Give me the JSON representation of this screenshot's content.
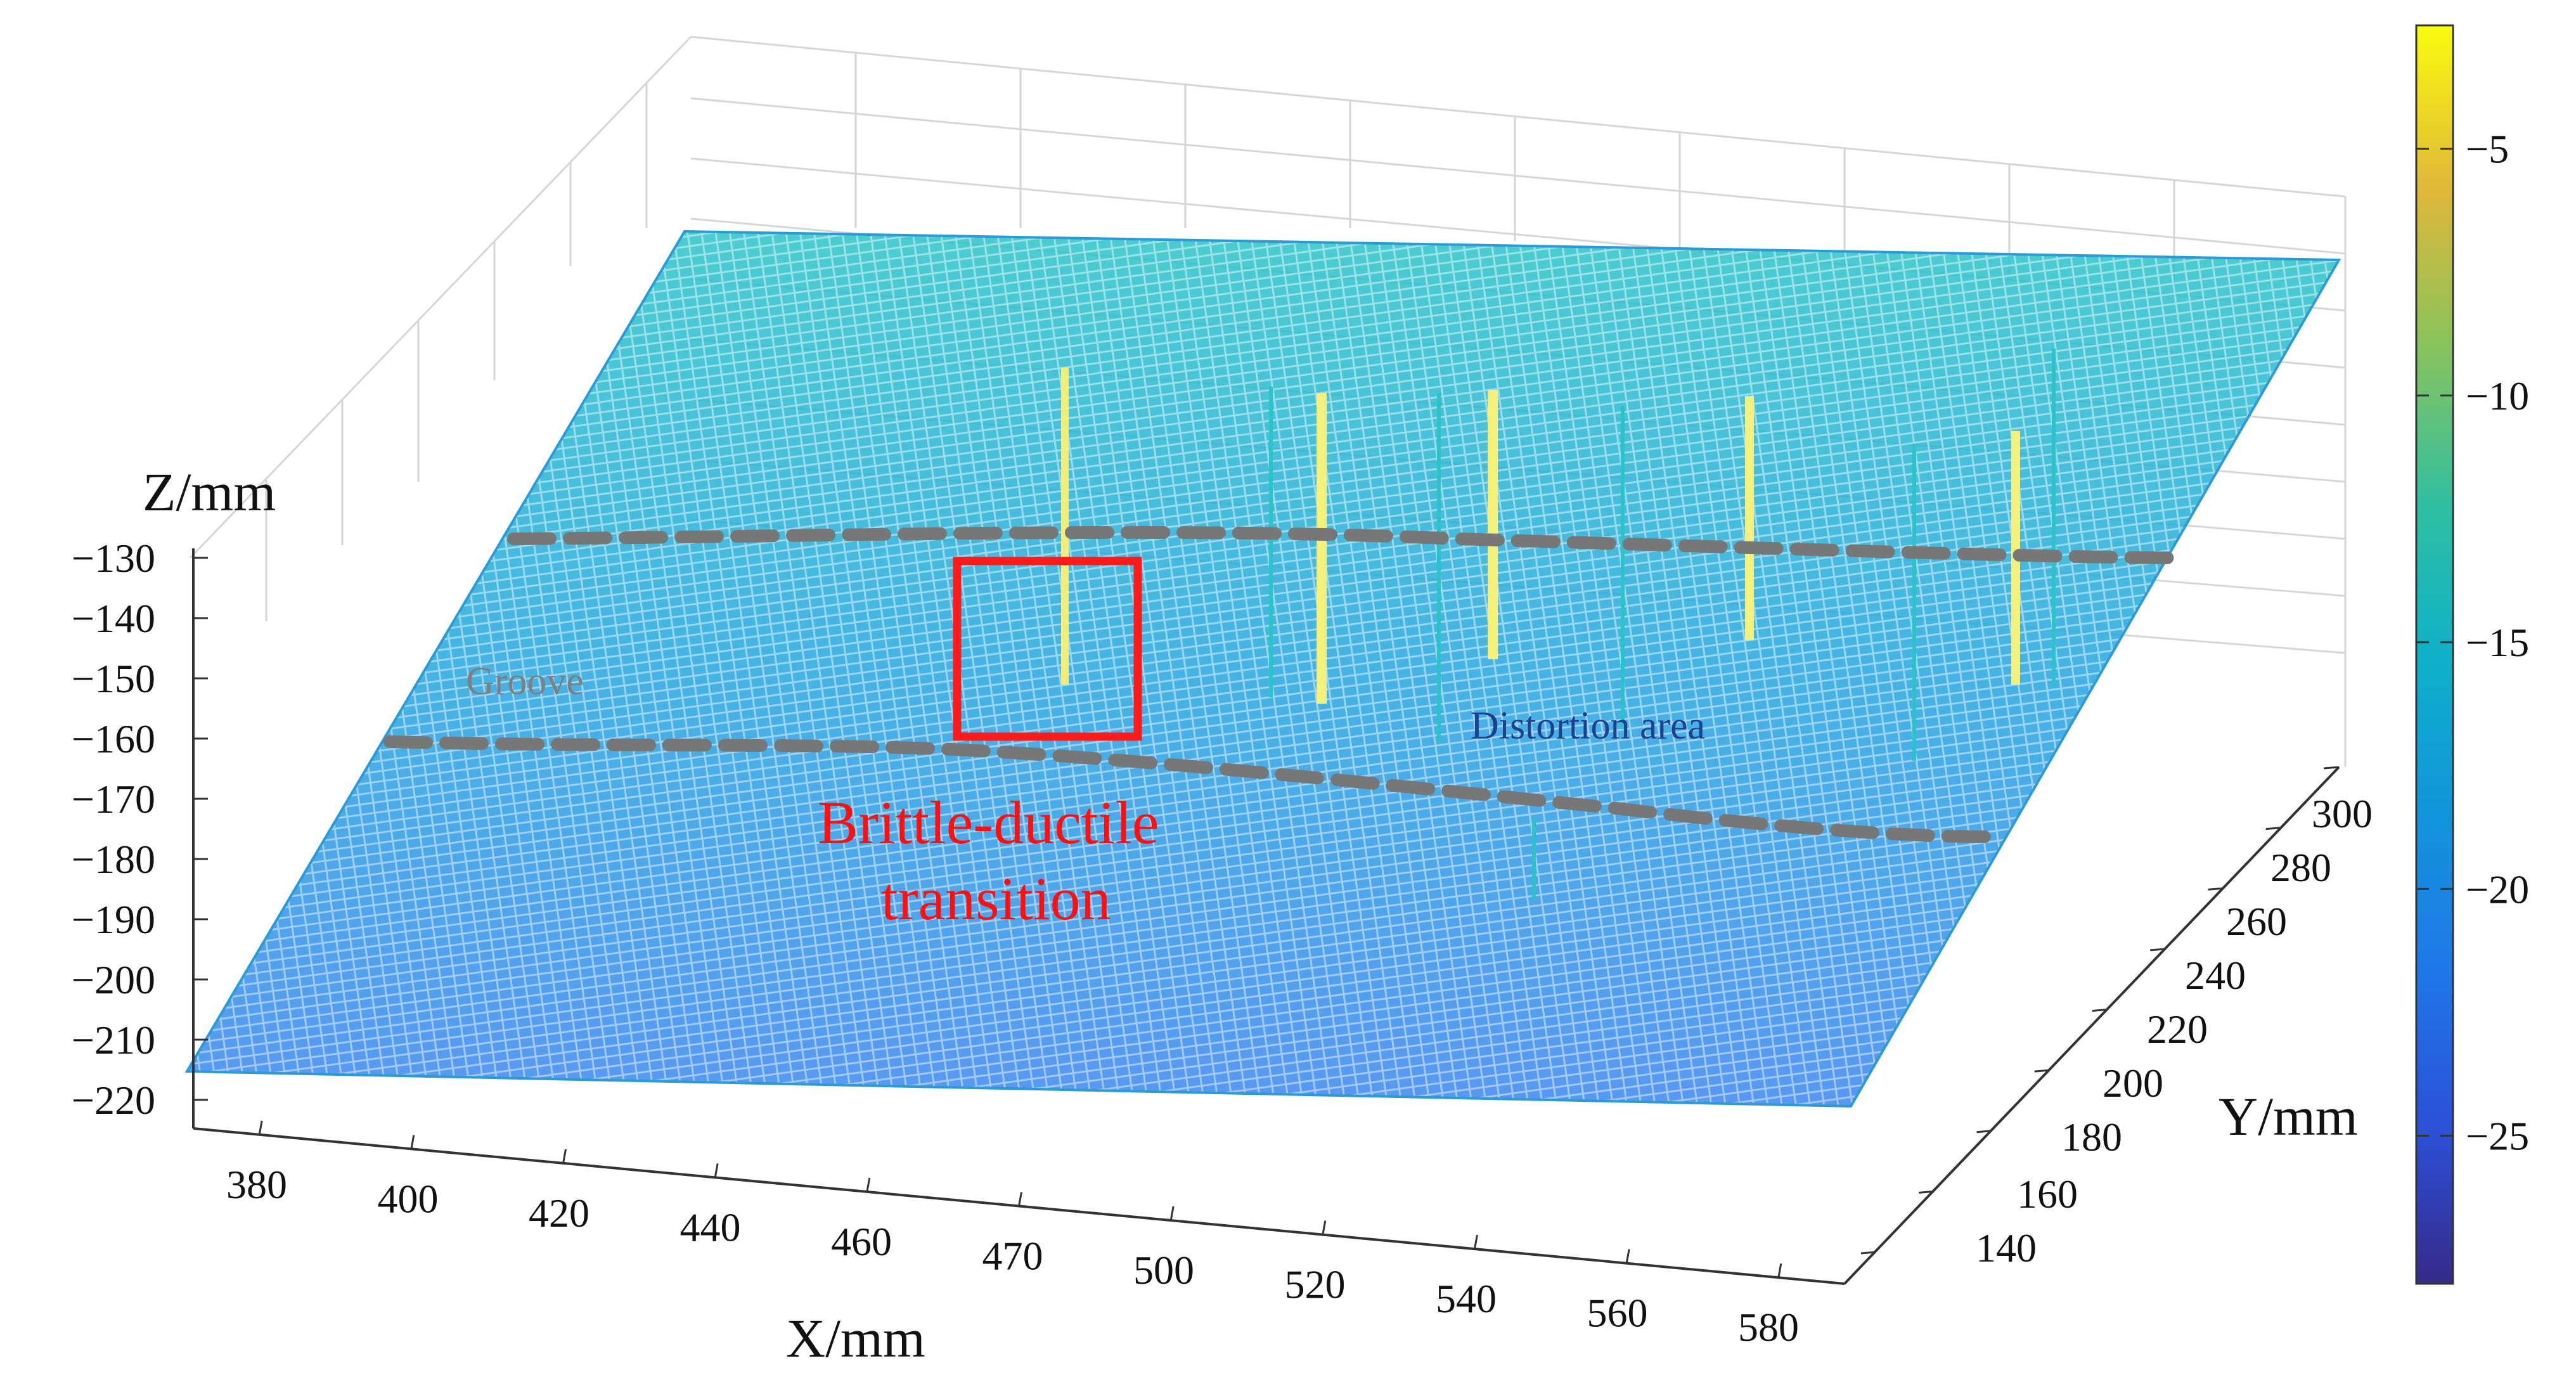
{
  "chart_data": {
    "type": "surface",
    "xlabel": "X/mm",
    "ylabel": "Y/mm",
    "zlabel": "Z/mm",
    "x_ticks": [
      "380",
      "400",
      "420",
      "440",
      "460",
      "470",
      "500",
      "520",
      "540",
      "560",
      "580"
    ],
    "y_ticks": [
      "140",
      "160",
      "180",
      "200",
      "220",
      "240",
      "260",
      "280",
      "300"
    ],
    "z_ticks": [
      "−130",
      "−140",
      "−150",
      "−160",
      "−170",
      "−180",
      "−190",
      "−200",
      "−210",
      "−220"
    ],
    "colorbar": {
      "ticks": [
        "−5",
        "−10",
        "−15",
        "−20",
        "−25"
      ],
      "colormap": "parula",
      "range": [
        -28,
        -2.5
      ]
    },
    "grid": true,
    "annotations": [
      {
        "text": "Groove",
        "color": "#7f7f7f"
      },
      {
        "text": "Distortion area",
        "color": "#1f3f8f"
      },
      {
        "text": "Brittle-ductile",
        "color": "#ff1010"
      },
      {
        "text": "transition",
        "color": "#ff1010"
      }
    ],
    "colors": {
      "surface_low": "#3a86f0",
      "surface_high": "#2ac4c8",
      "spike": "#f5f07a",
      "dashed_boundary": "#777777",
      "highlight_box": "#ff1a1a"
    }
  }
}
